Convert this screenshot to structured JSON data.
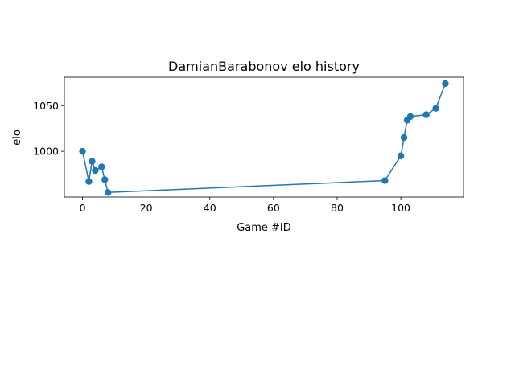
{
  "chart_data": {
    "type": "line",
    "title": "DamianBarabonov elo history",
    "xlabel": "Game #ID",
    "ylabel": "elo",
    "xlim": [
      -5.7,
      119.7
    ],
    "ylim": [
      950,
      1081
    ],
    "xticks": [
      0,
      20,
      40,
      60,
      80,
      100
    ],
    "yticks": [
      1000,
      1050
    ],
    "grid": false,
    "marker": "circle",
    "color": "#1f77b4",
    "series": [
      {
        "x": [
          0,
          2,
          3,
          4,
          6,
          7,
          8,
          95,
          100,
          101,
          102,
          103,
          108,
          111,
          114
        ],
        "y": [
          1000,
          967,
          989,
          979,
          983,
          969,
          955,
          968,
          995,
          1015,
          1034,
          1038,
          1040,
          1047,
          1074
        ]
      }
    ]
  }
}
